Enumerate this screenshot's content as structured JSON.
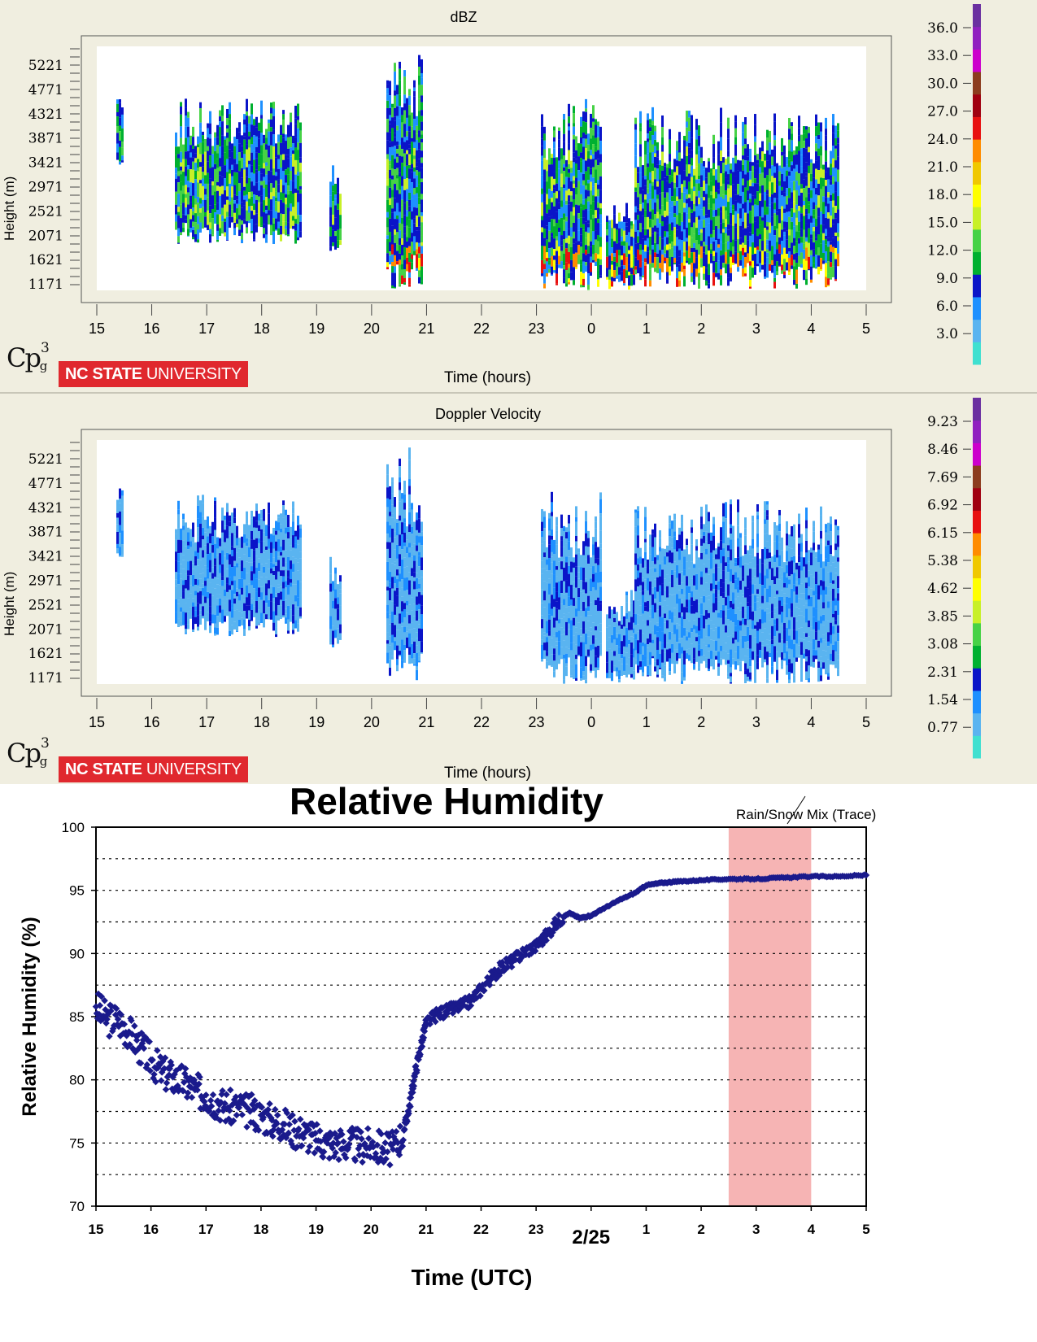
{
  "radar": {
    "dbz": {
      "title": "dBZ",
      "ylabel": "Height (m)",
      "xlabel": "Time (hours)",
      "yticks": [
        "5221",
        "4771",
        "4321",
        "3871",
        "3421",
        "2971",
        "2521",
        "2071",
        "1621",
        "1171"
      ],
      "xticks": [
        "15",
        "16",
        "17",
        "18",
        "19",
        "20",
        "21",
        "22",
        "23",
        "0",
        "1",
        "2",
        "3",
        "4",
        "5"
      ],
      "scale_labels": [
        "36.0",
        "33.0",
        "30.0",
        "27.0",
        "24.0",
        "21.0",
        "18.0",
        "15.0",
        "12.0",
        "9.0",
        "6.0",
        "3.0"
      ],
      "scale_colors": [
        "#40e0d0",
        "#5ab4f0",
        "#1e90ff",
        "#0a14c8",
        "#00b030",
        "#46d246",
        "#c8f028",
        "#ffff00",
        "#f0c800",
        "#ff8c00",
        "#e81010",
        "#a00010",
        "#8c3c1e",
        "#cc00cc",
        "#9020c0",
        "#6a30a0"
      ]
    },
    "doppler": {
      "title": "Doppler Velocity",
      "ylabel": "Height (m)",
      "xlabel": "Time (hours)",
      "yticks": [
        "5221",
        "4771",
        "4321",
        "3871",
        "3421",
        "2971",
        "2521",
        "2071",
        "1621",
        "1171"
      ],
      "xticks": [
        "15",
        "16",
        "17",
        "18",
        "19",
        "20",
        "21",
        "22",
        "23",
        "0",
        "1",
        "2",
        "3",
        "4",
        "5"
      ],
      "scale_labels": [
        "9.23",
        "8.46",
        "7.69",
        "6.92",
        "6.15",
        "5.38",
        "4.62",
        "3.85",
        "3.08",
        "2.31",
        "1.54",
        "0.77"
      ],
      "scale_colors": [
        "#40e0d0",
        "#5ab4f0",
        "#1e90ff",
        "#0a14c8",
        "#00b030",
        "#46d246",
        "#c8f028",
        "#ffff00",
        "#f0c800",
        "#ff8c00",
        "#e81010",
        "#a00010",
        "#8c3c1e",
        "#cc00cc",
        "#9020c0",
        "#6a30a0"
      ]
    },
    "logo_text": "CPg3",
    "university": "NC STATE UNIVERSITY"
  },
  "chart_data": {
    "type": "scatter",
    "title": "Relative Humidity",
    "xlabel": "Time (UTC)",
    "ylabel": "Relative Humidity (%)",
    "x_tick_labels": [
      "15",
      "16",
      "17",
      "18",
      "19",
      "20",
      "21",
      "22",
      "23",
      "2/25",
      "1",
      "2",
      "3",
      "4",
      "5"
    ],
    "ylim": [
      70,
      100
    ],
    "y_ticks": [
      70,
      75,
      80,
      85,
      90,
      95,
      100
    ],
    "grid": "dotted horizontal",
    "annotation": {
      "text": "Rain/Snow Mix  (Trace)",
      "x_range": [
        2.5,
        4.0
      ],
      "color": "#f6b4b4"
    },
    "series": [
      {
        "color": "#1a1a8c",
        "x": [
          15.0,
          15.2,
          15.4,
          15.6,
          15.8,
          16.0,
          16.2,
          16.4,
          16.6,
          16.8,
          17.0,
          17.2,
          17.4,
          17.6,
          17.8,
          18.0,
          18.2,
          18.4,
          18.6,
          18.8,
          19.0,
          19.2,
          19.4,
          19.6,
          19.8,
          20.0,
          20.2,
          20.4,
          20.6,
          20.7,
          20.8,
          20.9,
          21.0,
          21.2,
          21.4,
          21.6,
          21.8,
          22.0,
          22.2,
          22.4,
          22.6,
          22.8,
          23.0,
          23.2,
          23.4,
          23.6,
          23.8,
          24.0,
          24.2,
          24.5,
          24.8,
          25.0,
          25.3,
          25.6,
          26.0,
          26.5,
          27.0,
          27.5,
          28.0,
          28.5,
          29.0
        ],
        "y": [
          85.8,
          84.8,
          84.8,
          83.8,
          82.6,
          81.6,
          80.6,
          80.2,
          79.8,
          79.2,
          78.8,
          78.3,
          77.8,
          77.8,
          77.5,
          77.2,
          76.8,
          76.5,
          76.0,
          75.8,
          75.2,
          75.0,
          75.0,
          74.9,
          74.8,
          74.8,
          74.6,
          74.5,
          76.0,
          78.0,
          80.5,
          82.5,
          84.5,
          85.2,
          85.5,
          85.8,
          86.2,
          87.2,
          88.2,
          89.0,
          89.5,
          90.2,
          90.6,
          91.5,
          92.6,
          93.2,
          92.8,
          93.0,
          93.5,
          94.2,
          94.8,
          95.4,
          95.6,
          95.7,
          95.8,
          95.9,
          95.9,
          96.0,
          96.1,
          96.1,
          96.2
        ]
      }
    ]
  }
}
